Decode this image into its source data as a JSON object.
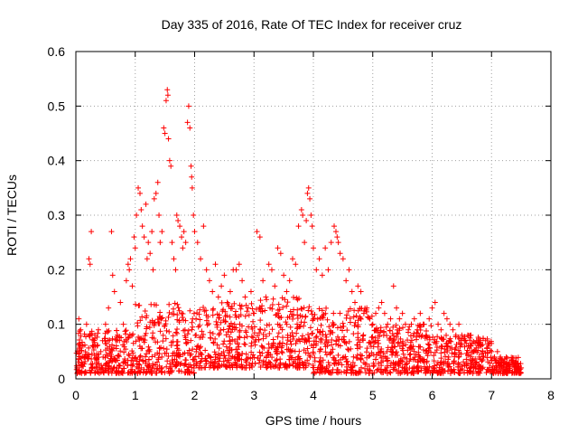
{
  "chart_data": {
    "type": "scatter",
    "title": "Day 335 of 2016, Rate Of TEC Index for receiver cruz",
    "xlabel": "GPS time / hours",
    "ylabel": "ROTI / TECUs",
    "xlim": [
      0,
      8
    ],
    "ylim": [
      0,
      0.6
    ],
    "xticks": [
      0,
      1,
      2,
      3,
      4,
      5,
      6,
      7,
      8
    ],
    "yticks": [
      0,
      0.1,
      0.2,
      0.3,
      0.4,
      0.5,
      0.6
    ],
    "x_tick_labels": [
      "0",
      "1",
      "2",
      "3",
      "4",
      "5",
      "6",
      "7",
      "8"
    ],
    "y_tick_labels": [
      "0",
      "0.1",
      "0.2",
      "0.3",
      "0.4",
      "0.5",
      "0.6"
    ],
    "grid": true,
    "marker": "+",
    "color": "#ff0000",
    "series": [
      {
        "name": "ROTI",
        "points": [
          [
            0.02,
            0.02
          ],
          [
            0.05,
            0.11
          ],
          [
            0.08,
            0.09
          ],
          [
            0.1,
            0.03
          ],
          [
            0.12,
            0.06
          ],
          [
            0.15,
            0.04
          ],
          [
            0.18,
            0.1
          ],
          [
            0.22,
            0.22
          ],
          [
            0.24,
            0.21
          ],
          [
            0.26,
            0.27
          ],
          [
            0.28,
            0.06
          ],
          [
            0.32,
            0.08
          ],
          [
            0.35,
            0.03
          ],
          [
            0.38,
            0.09
          ],
          [
            0.42,
            0.05
          ],
          [
            0.45,
            0.07
          ],
          [
            0.5,
            0.1
          ],
          [
            0.55,
            0.13
          ],
          [
            0.6,
            0.27
          ],
          [
            0.62,
            0.19
          ],
          [
            0.65,
            0.16
          ],
          [
            0.7,
            0.08
          ],
          [
            0.75,
            0.14
          ],
          [
            0.8,
            0.1
          ],
          [
            0.85,
            0.18
          ],
          [
            0.88,
            0.21
          ],
          [
            0.9,
            0.2
          ],
          [
            0.92,
            0.22
          ],
          [
            0.95,
            0.17
          ],
          [
            0.98,
            0.26
          ],
          [
            1.0,
            0.24
          ],
          [
            1.02,
            0.3
          ],
          [
            1.05,
            0.35
          ],
          [
            1.08,
            0.34
          ],
          [
            1.1,
            0.31
          ],
          [
            1.12,
            0.28
          ],
          [
            1.15,
            0.26
          ],
          [
            1.18,
            0.32
          ],
          [
            1.2,
            0.22
          ],
          [
            1.22,
            0.25
          ],
          [
            1.25,
            0.23
          ],
          [
            1.28,
            0.27
          ],
          [
            1.3,
            0.2
          ],
          [
            1.32,
            0.33
          ],
          [
            1.35,
            0.34
          ],
          [
            1.38,
            0.36
          ],
          [
            1.4,
            0.3
          ],
          [
            1.42,
            0.25
          ],
          [
            1.45,
            0.27
          ],
          [
            1.48,
            0.46
          ],
          [
            1.5,
            0.45
          ],
          [
            1.52,
            0.51
          ],
          [
            1.54,
            0.53
          ],
          [
            1.55,
            0.52
          ],
          [
            1.56,
            0.44
          ],
          [
            1.58,
            0.4
          ],
          [
            1.6,
            0.39
          ],
          [
            1.62,
            0.25
          ],
          [
            1.65,
            0.22
          ],
          [
            1.68,
            0.2
          ],
          [
            1.7,
            0.3
          ],
          [
            1.72,
            0.29
          ],
          [
            1.75,
            0.28
          ],
          [
            1.78,
            0.26
          ],
          [
            1.8,
            0.24
          ],
          [
            1.82,
            0.27
          ],
          [
            1.85,
            0.25
          ],
          [
            1.88,
            0.47
          ],
          [
            1.9,
            0.5
          ],
          [
            1.92,
            0.46
          ],
          [
            1.94,
            0.39
          ],
          [
            1.95,
            0.37
          ],
          [
            1.96,
            0.35
          ],
          [
            1.98,
            0.3
          ],
          [
            2.0,
            0.27
          ],
          [
            2.05,
            0.25
          ],
          [
            2.1,
            0.22
          ],
          [
            2.15,
            0.28
          ],
          [
            2.2,
            0.2
          ],
          [
            2.25,
            0.18
          ],
          [
            2.3,
            0.16
          ],
          [
            2.35,
            0.21
          ],
          [
            2.4,
            0.15
          ],
          [
            2.45,
            0.17
          ],
          [
            2.5,
            0.19
          ],
          [
            2.55,
            0.14
          ],
          [
            2.6,
            0.16
          ],
          [
            2.65,
            0.2
          ],
          [
            2.7,
            0.2
          ],
          [
            2.75,
            0.21
          ],
          [
            2.8,
            0.18
          ],
          [
            2.85,
            0.15
          ],
          [
            2.9,
            0.13
          ],
          [
            2.95,
            0.16
          ],
          [
            3.0,
            0.12
          ],
          [
            3.05,
            0.27
          ],
          [
            3.1,
            0.26
          ],
          [
            3.15,
            0.18
          ],
          [
            3.2,
            0.15
          ],
          [
            3.25,
            0.21
          ],
          [
            3.3,
            0.2
          ],
          [
            3.35,
            0.17
          ],
          [
            3.4,
            0.24
          ],
          [
            3.45,
            0.23
          ],
          [
            3.5,
            0.19
          ],
          [
            3.55,
            0.16
          ],
          [
            3.6,
            0.18
          ],
          [
            3.65,
            0.22
          ],
          [
            3.7,
            0.21
          ],
          [
            3.75,
            0.28
          ],
          [
            3.8,
            0.31
          ],
          [
            3.82,
            0.3
          ],
          [
            3.85,
            0.25
          ],
          [
            3.88,
            0.29
          ],
          [
            3.9,
            0.34
          ],
          [
            3.92,
            0.35
          ],
          [
            3.94,
            0.33
          ],
          [
            3.96,
            0.3
          ],
          [
            3.98,
            0.28
          ],
          [
            4.0,
            0.24
          ],
          [
            4.05,
            0.2
          ],
          [
            4.1,
            0.22
          ],
          [
            4.15,
            0.19
          ],
          [
            4.2,
            0.24
          ],
          [
            4.25,
            0.2
          ],
          [
            4.3,
            0.25
          ],
          [
            4.35,
            0.28
          ],
          [
            4.38,
            0.27
          ],
          [
            4.4,
            0.26
          ],
          [
            4.42,
            0.25
          ],
          [
            4.45,
            0.23
          ],
          [
            4.5,
            0.22
          ],
          [
            4.55,
            0.18
          ],
          [
            4.6,
            0.2
          ],
          [
            4.65,
            0.16
          ],
          [
            4.7,
            0.14
          ],
          [
            4.75,
            0.17
          ],
          [
            4.8,
            0.16
          ],
          [
            4.85,
            0.12
          ],
          [
            4.9,
            0.13
          ],
          [
            4.95,
            0.11
          ],
          [
            5.0,
            0.1
          ],
          [
            5.05,
            0.12
          ],
          [
            5.1,
            0.13
          ],
          [
            5.15,
            0.14
          ],
          [
            5.2,
            0.12
          ],
          [
            5.25,
            0.1
          ],
          [
            5.3,
            0.11
          ],
          [
            5.35,
            0.17
          ],
          [
            5.4,
            0.13
          ],
          [
            5.45,
            0.11
          ],
          [
            5.5,
            0.12
          ],
          [
            5.55,
            0.1
          ],
          [
            5.6,
            0.09
          ],
          [
            5.65,
            0.1
          ],
          [
            5.7,
            0.11
          ],
          [
            5.75,
            0.09
          ],
          [
            5.8,
            0.12
          ],
          [
            5.85,
            0.1
          ],
          [
            5.9,
            0.08
          ],
          [
            5.95,
            0.11
          ],
          [
            6.0,
            0.13
          ],
          [
            6.05,
            0.14
          ],
          [
            6.1,
            0.1
          ],
          [
            6.15,
            0.09
          ],
          [
            6.2,
            0.12
          ],
          [
            6.25,
            0.11
          ],
          [
            6.3,
            0.1
          ],
          [
            6.35,
            0.09
          ],
          [
            6.4,
            0.08
          ],
          [
            6.45,
            0.1
          ],
          [
            6.5,
            0.08
          ],
          [
            6.55,
            0.07
          ],
          [
            6.6,
            0.08
          ],
          [
            6.65,
            0.06
          ],
          [
            6.7,
            0.05
          ],
          [
            6.75,
            0.07
          ],
          [
            6.8,
            0.06
          ],
          [
            6.85,
            0.05
          ],
          [
            6.9,
            0.07
          ],
          [
            6.95,
            0.06
          ],
          [
            7.0,
            0.05
          ],
          [
            7.05,
            0.04
          ],
          [
            7.1,
            0.05
          ],
          [
            7.15,
            0.04
          ],
          [
            7.2,
            0.03
          ],
          [
            7.25,
            0.04
          ],
          [
            7.3,
            0.03
          ],
          [
            7.35,
            0.03
          ],
          [
            7.4,
            0.03
          ],
          [
            7.45,
            0.02
          ],
          [
            7.5,
            0.02
          ]
        ]
      }
    ],
    "background_cloud": {
      "description_note": "dense band of points, value ranges per hour bin",
      "bins": [
        {
          "x": [
            0.0,
            1.0
          ],
          "y": [
            0.01,
            0.09
          ]
        },
        {
          "x": [
            1.0,
            2.0
          ],
          "y": [
            0.01,
            0.14
          ]
        },
        {
          "x": [
            2.0,
            3.0
          ],
          "y": [
            0.02,
            0.14
          ]
        },
        {
          "x": [
            3.0,
            4.0
          ],
          "y": [
            0.02,
            0.15
          ]
        },
        {
          "x": [
            4.0,
            5.0
          ],
          "y": [
            0.01,
            0.13
          ]
        },
        {
          "x": [
            5.0,
            6.0
          ],
          "y": [
            0.01,
            0.1
          ]
        },
        {
          "x": [
            6.0,
            7.0
          ],
          "y": [
            0.01,
            0.08
          ]
        },
        {
          "x": [
            7.0,
            7.5
          ],
          "y": [
            0.01,
            0.04
          ]
        }
      ]
    }
  }
}
